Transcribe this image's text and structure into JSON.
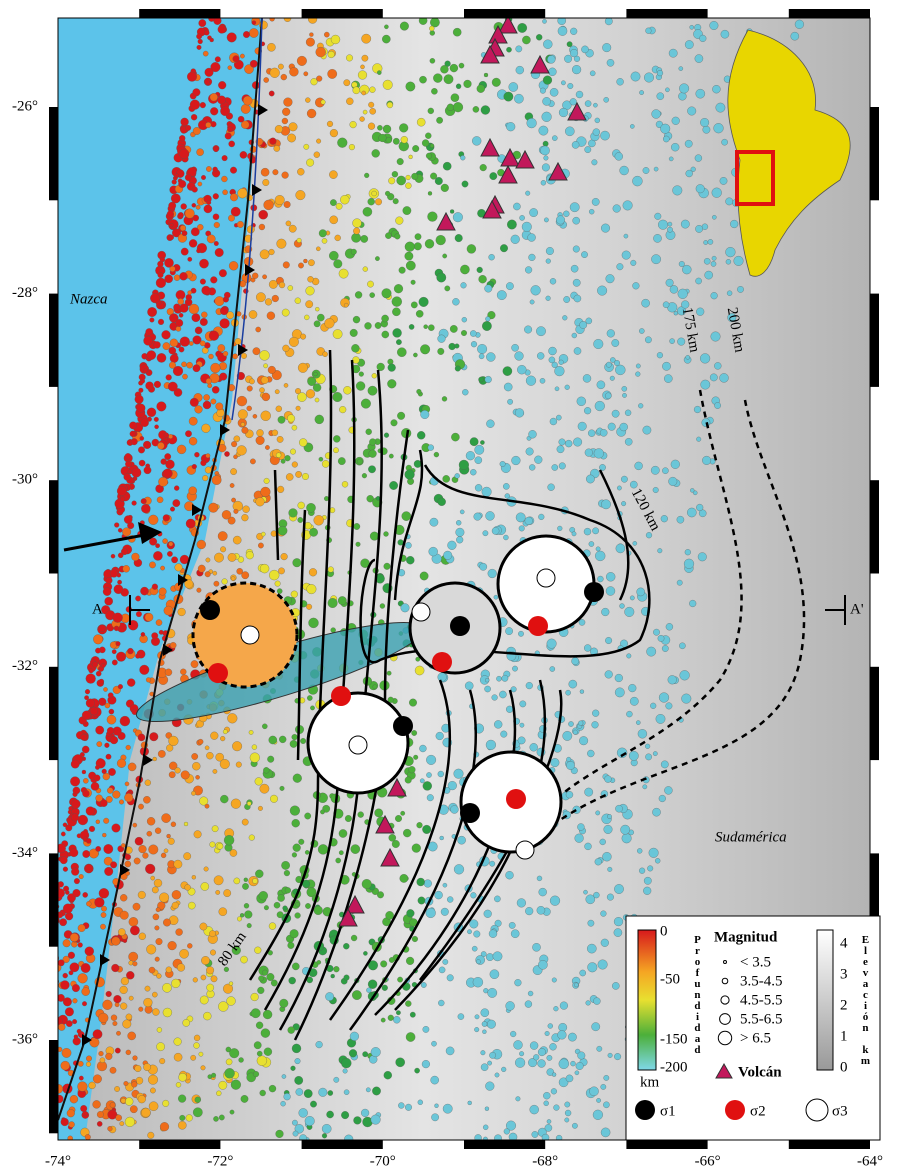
{
  "axes": {
    "x_labels": [
      "-74°",
      "-72°",
      "-70°",
      "-68°",
      "-66°",
      "-64°"
    ],
    "y_labels": [
      "-26°",
      "-28°",
      "-30°",
      "-32°",
      "-34°",
      "-36°"
    ]
  },
  "labels": {
    "nazca": "Nazca",
    "sudamerica": "Sudamérica",
    "a": "A",
    "a_prime": "A'",
    "contours": [
      "80 km",
      "120 km",
      "175 km",
      "200 km"
    ]
  },
  "legend": {
    "depth_title": "Profundidad",
    "depth_ticks": [
      "0",
      "-50",
      "-150",
      "-200"
    ],
    "depth_unit": "km",
    "magnitude_title": "Magnitud",
    "magnitudes": [
      "< 3.5",
      "3.5-4.5",
      "4.5-5.5",
      "5.5-6.5",
      "> 6.5"
    ],
    "volcano": "Volcán",
    "elevation_title": "Elevación km",
    "elevation_ticks": [
      "4",
      "3",
      "2",
      "1",
      "0"
    ],
    "sigmas": [
      "σ1",
      "σ2",
      "σ3"
    ]
  }
}
